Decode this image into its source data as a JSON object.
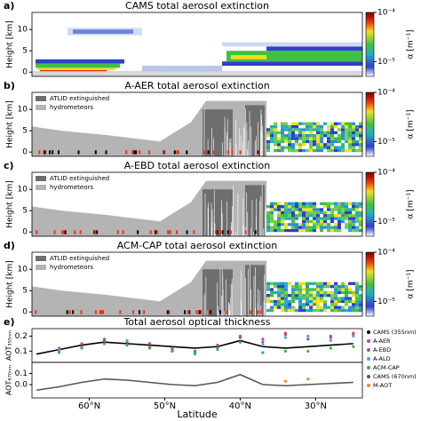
{
  "chart_data": [
    {
      "type": "curtain",
      "label": "a)",
      "title": "CAMS total aerosol extinction",
      "ylabel": "Height [km]",
      "xlim": [
        67.6,
        23.8
      ],
      "ylim": [
        -1,
        14
      ],
      "yticks": [
        0,
        5,
        10
      ],
      "clim": [
        5e-06,
        0.0001
      ],
      "log_color": true,
      "cticks": [
        {
          "value": 0.0001,
          "label": "10⁻⁴"
        },
        {
          "value": 1e-05,
          "label": "10⁻⁵"
        }
      ],
      "clabel": "α [m⁻¹]",
      "variant": "model"
    },
    {
      "type": "curtain",
      "label": "b)",
      "title": "A-AER total aerosol extinction",
      "ylabel": "Height [km]",
      "xlim": [
        67.6,
        23.8
      ],
      "ylim": [
        -1,
        14
      ],
      "yticks": [
        0,
        5,
        10
      ],
      "clim": [
        5e-06,
        0.0001
      ],
      "log_color": true,
      "cticks": [
        {
          "value": 0.0001,
          "label": "10⁻⁴"
        },
        {
          "value": 1e-05,
          "label": "10⁻⁵"
        }
      ],
      "clabel": "α [m⁻¹]",
      "legend": [
        {
          "name": "ATLID extinguished",
          "color": "#6e6e6e"
        },
        {
          "name": "hydrometeors",
          "color": "#b4b4b4"
        }
      ],
      "variant": "retrieval"
    },
    {
      "type": "curtain",
      "label": "c)",
      "title": "A-EBD total aerosol extinction",
      "ylabel": "Height [km]",
      "xlim": [
        67.6,
        23.8
      ],
      "ylim": [
        -1,
        14
      ],
      "yticks": [
        0,
        5,
        10
      ],
      "clim": [
        5e-06,
        0.0001
      ],
      "log_color": true,
      "cticks": [
        {
          "value": 0.0001,
          "label": "10⁻⁴"
        },
        {
          "value": 1e-05,
          "label": "10⁻⁵"
        }
      ],
      "clabel": "α [m⁻¹]",
      "legend": [
        {
          "name": "ATLID extinguished",
          "color": "#6e6e6e"
        },
        {
          "name": "hydrometeors",
          "color": "#b4b4b4"
        }
      ],
      "variant": "retrieval"
    },
    {
      "type": "curtain",
      "label": "d)",
      "title": "ACM-CAP total aerosol extinction",
      "ylabel": "Height [km]",
      "xlim": [
        67.6,
        23.8
      ],
      "ylim": [
        -1,
        14
      ],
      "yticks": [
        0,
        5,
        10
      ],
      "clim": [
        5e-06,
        0.0001
      ],
      "log_color": true,
      "cticks": [
        {
          "value": 0.0001,
          "label": "10⁻⁴"
        },
        {
          "value": 1e-05,
          "label": "10⁻⁵"
        }
      ],
      "clabel": "α [m⁻¹]",
      "legend": [
        {
          "name": "ATLID extinguished",
          "color": "#6e6e6e"
        },
        {
          "name": "hydrometeors",
          "color": "#b4b4b4"
        }
      ],
      "variant": "retrieval"
    },
    {
      "type": "line",
      "label": "e)",
      "title": "Total aerosol optical thickness",
      "ylabel": "AOT₃₅₅ₙₘ",
      "xlim": [
        67.6,
        23.8
      ],
      "ylim": [
        0.025,
        0.25
      ],
      "yticks": [
        0.1,
        0.2
      ],
      "x": [
        67,
        64,
        61,
        58,
        55,
        52,
        49,
        46,
        43,
        40,
        37,
        34,
        31,
        28,
        25
      ],
      "series": [
        {
          "name": "CAMS (355nm)",
          "color": "#000000",
          "mode": "line",
          "values": [
            0.08,
            0.11,
            0.14,
            0.16,
            0.15,
            0.14,
            0.13,
            0.12,
            0.13,
            0.17,
            0.13,
            0.12,
            0.13,
            0.14,
            0.15
          ]
        },
        {
          "name": "A-AER",
          "color": "#d0407a",
          "mode": "points",
          "values": [
            null,
            0.12,
            0.15,
            0.18,
            0.16,
            0.15,
            0.12,
            0.1,
            0.14,
            0.2,
            0.18,
            0.21,
            0.2,
            0.19,
            0.22
          ]
        },
        {
          "name": "A-EBD",
          "color": "#9a4fb0",
          "mode": "points",
          "values": [
            null,
            0.1,
            0.13,
            0.17,
            0.14,
            0.13,
            0.11,
            0.09,
            0.12,
            0.19,
            0.16,
            0.22,
            0.18,
            0.2,
            0.21
          ]
        },
        {
          "name": "A-ALD",
          "color": "#4aa8d8",
          "mode": "points",
          "values": [
            null,
            0.11,
            0.12,
            0.15,
            0.17,
            0.12,
            0.1,
            0.08,
            0.11,
            0.16,
            0.14,
            0.19,
            0.2,
            0.17,
            0.2
          ]
        },
        {
          "name": "ACM-CAP",
          "color": "#3cb043",
          "mode": "points",
          "values": [
            null,
            0.09,
            0.12,
            0.15,
            0.14,
            0.12,
            0.1,
            0.09,
            0.12,
            0.16,
            0.09,
            0.1,
            0.1,
            0.12,
            0.13
          ]
        }
      ]
    },
    {
      "type": "line",
      "ylabel": "AOT₆₇₀ₙₘ",
      "xlabel": "Latitude",
      "xlim": [
        67.6,
        23.8
      ],
      "ylim": [
        -0.12,
        0.2
      ],
      "yticks": [
        {
          "value": 0,
          "label": "0.0"
        },
        0.1
      ],
      "xticks": [
        {
          "value": 60,
          "label": "60°N"
        },
        {
          "value": 50,
          "label": "50°N"
        },
        {
          "value": 40,
          "label": "40°N"
        },
        {
          "value": 30,
          "label": "30°N"
        }
      ],
      "x": [
        67,
        64,
        61,
        58,
        55,
        52,
        49,
        46,
        43,
        40,
        37,
        34,
        31,
        28,
        25
      ],
      "series": [
        {
          "name": "CAMS (670nm)",
          "color": "#555555",
          "mode": "line",
          "values": [
            -0.05,
            -0.02,
            0.02,
            0.05,
            0.04,
            0.02,
            0.0,
            -0.01,
            0.02,
            0.09,
            0.0,
            -0.01,
            0.0,
            0.01,
            0.02
          ]
        },
        {
          "name": "M-AOT",
          "color": "#f08c1e",
          "mode": "points",
          "values": [
            null,
            null,
            null,
            null,
            null,
            null,
            null,
            null,
            null,
            null,
            null,
            0.03,
            0.05,
            null,
            null
          ]
        }
      ]
    }
  ]
}
